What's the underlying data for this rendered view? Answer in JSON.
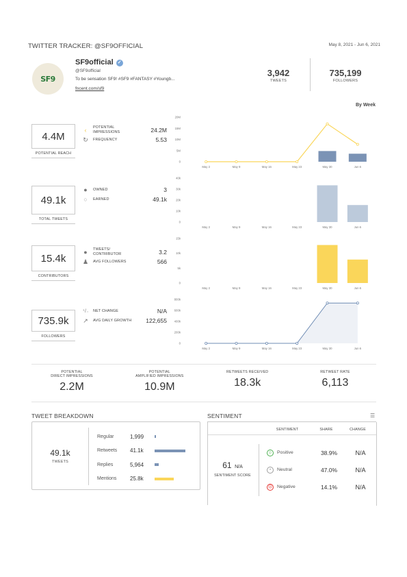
{
  "header": {
    "title": "TWITTER TRACKER: @SF9OFFICIAL",
    "date_range": "May 8, 2021 - Jun 6, 2021"
  },
  "profile": {
    "avatar_text": "SF9",
    "name": "SF9official",
    "handle": "@SF9official",
    "bio": "To be sensation SF9! #SF9 #FANTASY #Youngb...",
    "link": "fncent.com/sf9",
    "tweets_value": "3,942",
    "tweets_label": "TWEETS",
    "followers_value": "735,199",
    "followers_label": "FOLLOWERS"
  },
  "by_week": "By Week",
  "colors": {
    "yellow": "#fad65a",
    "steel": "#7b93b5",
    "lightsteel": "#bccadb",
    "line_blue": "#6f8cb4"
  },
  "rows": [
    {
      "kpi_value": "4.4M",
      "kpi_label": "POTENTIAL REACH",
      "metrics": [
        {
          "icon": "arrow-left-icon",
          "label1": "POTENTIAL",
          "label2": "IMPRESSIONS",
          "value": "24.2M"
        },
        {
          "icon": "refresh-icon",
          "label1": "FREQUENCY",
          "label2": "",
          "value": "5.53"
        }
      ]
    },
    {
      "kpi_value": "49.1k",
      "kpi_label": "TOTAL TWEETS",
      "metrics": [
        {
          "icon": "speech-bubble-icon",
          "label1": "OWNED",
          "label2": "",
          "value": "3"
        },
        {
          "icon": "speech-bubble-outline-icon",
          "label1": "EARNED",
          "label2": "",
          "value": "49.1k"
        }
      ]
    },
    {
      "kpi_value": "15.4k",
      "kpi_label": "CONTRIBUTORS",
      "metrics": [
        {
          "icon": "speech-bubble-icon",
          "label1": "TWEETS/",
          "label2": "CONTRIBUTOR",
          "value": "3.2"
        },
        {
          "icon": "people-icon",
          "label1": "AVG FOLLOWERS",
          "label2": "",
          "value": "566"
        }
      ]
    },
    {
      "kpi_value": "735.9k",
      "kpi_label": "FOLLOWERS",
      "metrics": [
        {
          "icon": "plus-minus-icon",
          "label1": "NET CHANGE",
          "label2": "",
          "value": "N/A"
        },
        {
          "icon": "growth-chart-icon",
          "label1": "AVG DAILY GROWTH",
          "label2": "",
          "value": "122,655"
        }
      ]
    }
  ],
  "chart_data": [
    {
      "type": "line",
      "x": [
        "May 2",
        "May 9",
        "May 16",
        "May 23",
        "May 30",
        "Jun 6"
      ],
      "y_ticks": [
        "20M",
        "15M",
        "10M",
        "5M",
        "0"
      ],
      "ylim": [
        0,
        20000000
      ],
      "series": [
        {
          "type": "line",
          "values": [
            0,
            0,
            0,
            0,
            17000000,
            7800000
          ]
        },
        {
          "type": "bar",
          "values": [
            0,
            0,
            0,
            0,
            4800000,
            3600000
          ]
        }
      ]
    },
    {
      "type": "bar",
      "x": [
        "May 2",
        "May 9",
        "May 16",
        "May 23",
        "May 30",
        "Jun 6"
      ],
      "y_ticks": [
        "40k",
        "30k",
        "20k",
        "10k",
        "0"
      ],
      "ylim": [
        0,
        40000
      ],
      "series": [
        {
          "values": [
            0,
            0,
            0,
            0,
            33500,
            15500
          ]
        }
      ]
    },
    {
      "type": "bar",
      "x": [
        "May 2",
        "May 9",
        "May 16",
        "May 23",
        "May 30",
        "Jun 6"
      ],
      "y_ticks": [
        "15k",
        "10k",
        "5k",
        "0"
      ],
      "ylim": [
        0,
        15000
      ],
      "series": [
        {
          "values": [
            0,
            0,
            0,
            0,
            12800,
            7900
          ]
        }
      ]
    },
    {
      "type": "area",
      "x": [
        "May 2",
        "May 9",
        "May 16",
        "May 23",
        "May 30",
        "Jun 6"
      ],
      "y_ticks": [
        "800k",
        "600k",
        "400k",
        "200k",
        "0"
      ],
      "ylim": [
        0,
        800000
      ],
      "series": [
        {
          "values": [
            0,
            0,
            0,
            0,
            735000,
            735000
          ]
        }
      ]
    }
  ],
  "summary": [
    {
      "label1": "POTENTIAL",
      "label2": "DIRECT IMPRESSIONS",
      "value": "2.2M"
    },
    {
      "label1": "POTENTIAL",
      "label2": "AMPLIFIED IMPRESSIONS",
      "value": "10.9M"
    },
    {
      "label1": "",
      "label2": "RETWEETS RECEIVED",
      "value": "18.3k"
    },
    {
      "label1": "",
      "label2": "RETWEET RATE",
      "value": "6,113"
    }
  ],
  "breakdown": {
    "title": "TWEET BREAKDOWN",
    "total_value": "49.1k",
    "total_label": "TWEETS",
    "rows": [
      {
        "label": "Regular",
        "value": "1,999",
        "fraction": 0.04
      },
      {
        "label": "Retweets",
        "value": "41.1k",
        "fraction": 1.0
      },
      {
        "label": "Replies",
        "value": "5,964",
        "fraction": 0.14
      },
      {
        "label": "Mentions",
        "value": "25.8k",
        "fraction": 0.63
      }
    ]
  },
  "sentiment": {
    "title": "SENTIMENT",
    "col_sentiment": "SENTIMENT",
    "col_share": "SHARE",
    "col_change": "CHANGE",
    "score_value": "61",
    "score_suffix": "N/A",
    "score_label": "SENTIMENT SCORE",
    "rows": [
      {
        "label": "Positive",
        "share": "38.9%",
        "change": "N/A",
        "color": "#4caf50",
        "icon": "smile-icon"
      },
      {
        "label": "Neutral",
        "share": "47.0%",
        "change": "N/A",
        "color": "#9e9e9e",
        "icon": "neutral-face-icon"
      },
      {
        "label": "Negative",
        "share": "14.1%",
        "change": "N/A",
        "color": "#e53935",
        "icon": "frown-icon"
      }
    ]
  }
}
